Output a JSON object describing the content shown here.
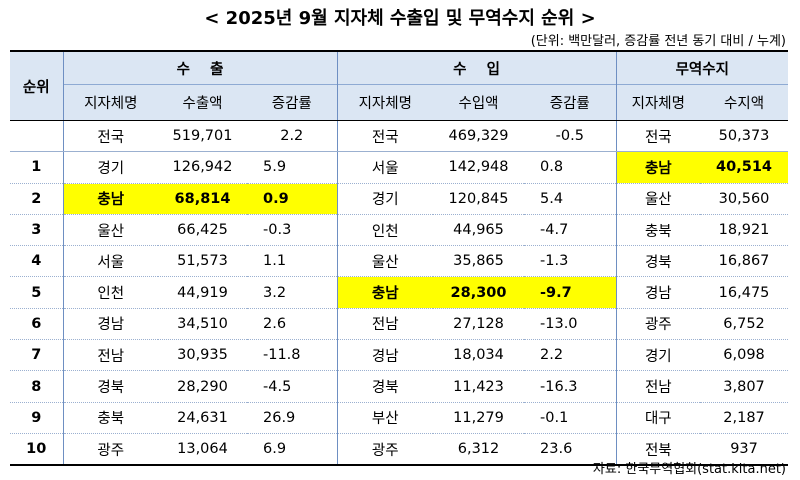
{
  "title": "< 2025년 9월 지자체 수출입 및 무역수지 순위 >",
  "unit_note": "(단위: 백만달러, 증감률 전년 동기 대비 / 누계)",
  "source": "자료: 한국무역협회(stat.kita.net)",
  "highlight_color": "#ffff00",
  "header_bg": "#dbe6f3",
  "headers": {
    "rank": "순위",
    "export_group": "수    출",
    "import_group": "수    입",
    "balance_group": "무역수지",
    "region": "지자체명",
    "export_amount": "수출액",
    "change_rate": "증감률",
    "import_amount": "수입액",
    "balance_amount": "수지액"
  },
  "rows": [
    {
      "rank": "",
      "ex_region": "전국",
      "ex_value": "519,701",
      "ex_rate": "2.2",
      "im_region": "전국",
      "im_value": "469,329",
      "im_rate": "-0.5",
      "bal_region": "전국",
      "bal_value": "50,373"
    },
    {
      "rank": "1",
      "ex_region": "경기",
      "ex_value": "126,942",
      "ex_rate": "5.9",
      "im_region": "서울",
      "im_value": "142,948",
      "im_rate": "0.8",
      "bal_region": "충남",
      "bal_value": "40,514"
    },
    {
      "rank": "2",
      "ex_region": "충남",
      "ex_value": "68,814",
      "ex_rate": "0.9",
      "im_region": "경기",
      "im_value": "120,845",
      "im_rate": "5.4",
      "bal_region": "울산",
      "bal_value": "30,560"
    },
    {
      "rank": "3",
      "ex_region": "울산",
      "ex_value": "66,425",
      "ex_rate": "-0.3",
      "im_region": "인천",
      "im_value": "44,965",
      "im_rate": "-4.7",
      "bal_region": "충북",
      "bal_value": "18,921"
    },
    {
      "rank": "4",
      "ex_region": "서울",
      "ex_value": "51,573",
      "ex_rate": "1.1",
      "im_region": "울산",
      "im_value": "35,865",
      "im_rate": "-1.3",
      "bal_region": "경북",
      "bal_value": "16,867"
    },
    {
      "rank": "5",
      "ex_region": "인천",
      "ex_value": "44,919",
      "ex_rate": "3.2",
      "im_region": "충남",
      "im_value": "28,300",
      "im_rate": "-9.7",
      "bal_region": "경남",
      "bal_value": "16,475"
    },
    {
      "rank": "6",
      "ex_region": "경남",
      "ex_value": "34,510",
      "ex_rate": "2.6",
      "im_region": "전남",
      "im_value": "27,128",
      "im_rate": "-13.0",
      "bal_region": "광주",
      "bal_value": "6,752"
    },
    {
      "rank": "7",
      "ex_region": "전남",
      "ex_value": "30,935",
      "ex_rate": "-11.8",
      "im_region": "경남",
      "im_value": "18,034",
      "im_rate": "2.2",
      "bal_region": "경기",
      "bal_value": "6,098"
    },
    {
      "rank": "8",
      "ex_region": "경북",
      "ex_value": "28,290",
      "ex_rate": "-4.5",
      "im_region": "경북",
      "im_value": "11,423",
      "im_rate": "-16.3",
      "bal_region": "전남",
      "bal_value": "3,807"
    },
    {
      "rank": "9",
      "ex_region": "충북",
      "ex_value": "24,631",
      "ex_rate": "26.9",
      "im_region": "부산",
      "im_value": "11,279",
      "im_rate": "-0.1",
      "bal_region": "대구",
      "bal_value": "2,187"
    },
    {
      "rank": "10",
      "ex_region": "광주",
      "ex_value": "13,064",
      "ex_rate": "6.9",
      "im_region": "광주",
      "im_value": "6,312",
      "im_rate": "23.6",
      "bal_region": "전북",
      "bal_value": "937"
    }
  ]
}
